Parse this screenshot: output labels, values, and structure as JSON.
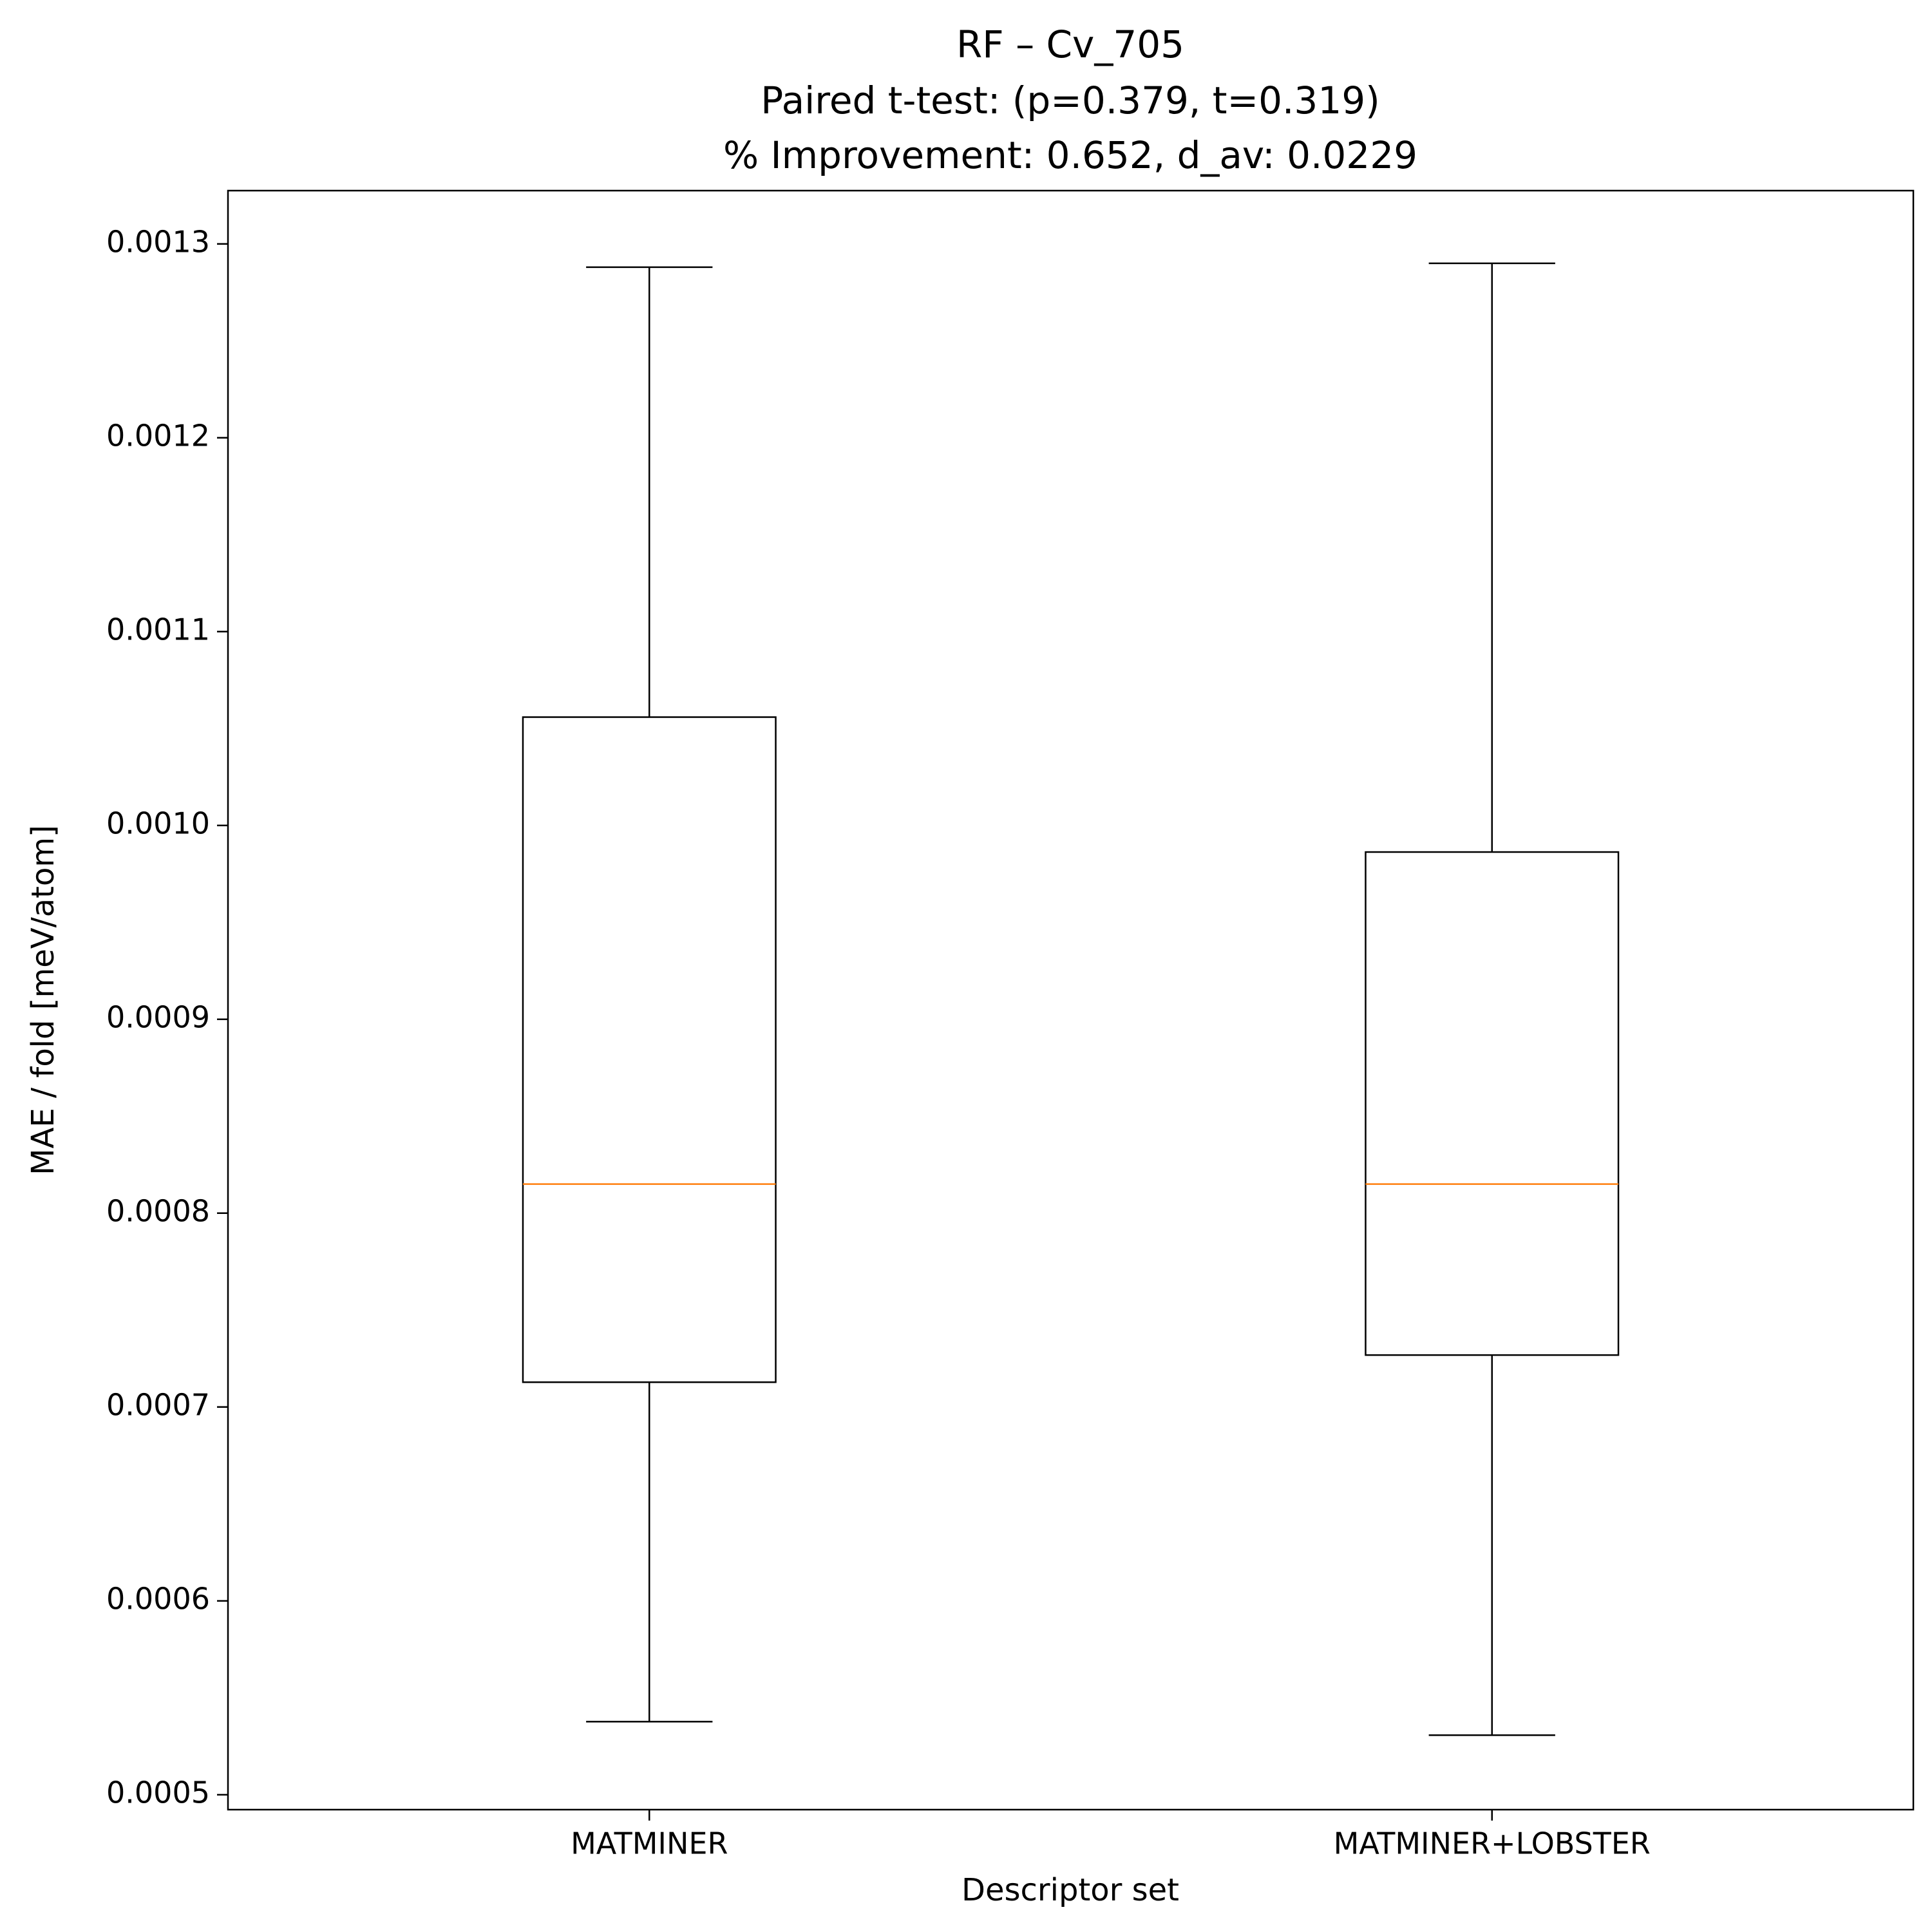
{
  "chart_data": {
    "type": "box",
    "title": [
      "RF – Cv_705",
      "Paired t-test: (p=0.379, t=0.319)",
      "% Improvement: 0.652, d_av: 0.0229"
    ],
    "x_label": "Descriptor set",
    "y_label": "MAE / fold [meV/atom]",
    "categories": [
      "MATMINER",
      "MATMINER+LOBSTER"
    ],
    "boxes": [
      {
        "whislo": 0.0005377,
        "q1": 0.0007128,
        "med": 0.000815,
        "q3": 0.0010559,
        "whishi": 0.001288
      },
      {
        "whislo": 0.0005307,
        "q1": 0.0007268,
        "med": 0.000815,
        "q3": 0.0009863,
        "whishi": 0.00129
      }
    ],
    "box_color": "#000000",
    "median_color": "#ff7f0e",
    "ylim": [
      0.0004923,
      0.0013275
    ],
    "yticks": [
      {
        "value": 0.0005,
        "label": "0.0005"
      },
      {
        "value": 0.0006,
        "label": "0.0006"
      },
      {
        "value": 0.0007,
        "label": "0.0007"
      },
      {
        "value": 0.0008,
        "label": "0.0008"
      },
      {
        "value": 0.0009,
        "label": "0.0009"
      },
      {
        "value": 0.001,
        "label": "0.0010"
      },
      {
        "value": 0.0011,
        "label": "0.0011"
      },
      {
        "value": 0.0012,
        "label": "0.0012"
      },
      {
        "value": 0.0013,
        "label": "0.0013"
      }
    ],
    "grid": false
  }
}
